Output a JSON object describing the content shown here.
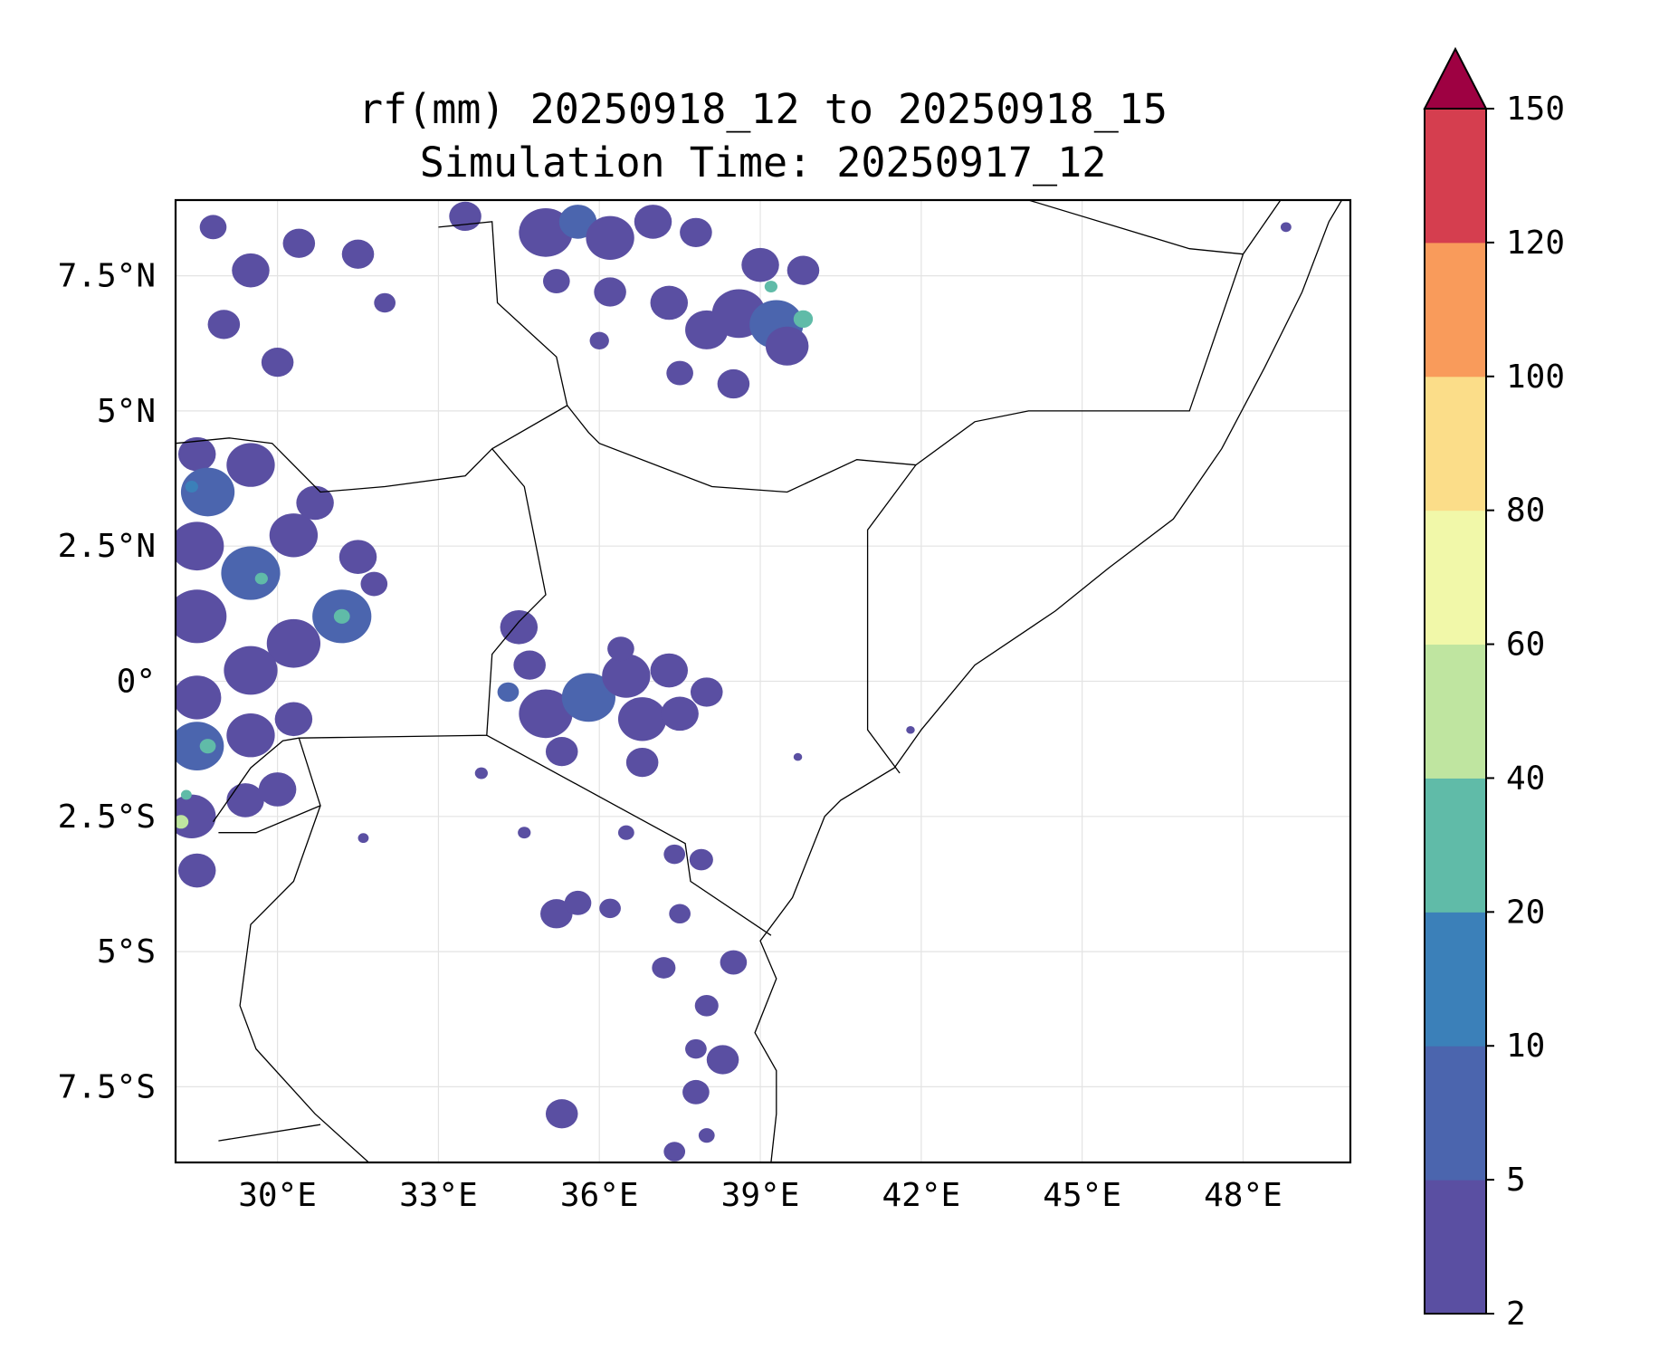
{
  "title": {
    "line1": "rf(mm) 20250918_12 to 20250918_15",
    "line2": "Simulation Time: 20250917_12"
  },
  "map": {
    "lon_range": [
      28.1,
      50.0
    ],
    "lat_range": [
      -8.9,
      8.9
    ],
    "gridlines": true,
    "x_ticks": [
      {
        "value": 30,
        "label": "30°E"
      },
      {
        "value": 33,
        "label": "33°E"
      },
      {
        "value": 36,
        "label": "36°E"
      },
      {
        "value": 39,
        "label": "39°E"
      },
      {
        "value": 42,
        "label": "42°E"
      },
      {
        "value": 45,
        "label": "45°E"
      },
      {
        "value": 48,
        "label": "48°E"
      }
    ],
    "y_ticks": [
      {
        "value": 7.5,
        "label": "7.5°N"
      },
      {
        "value": 5,
        "label": "5°N"
      },
      {
        "value": 2.5,
        "label": "2.5°N"
      },
      {
        "value": 0,
        "label": "0°"
      },
      {
        "value": -2.5,
        "label": "2.5°S"
      },
      {
        "value": -5,
        "label": "5°S"
      },
      {
        "value": -7.5,
        "label": "7.5°S"
      }
    ],
    "coastline_lonlat": [
      [
        39.2,
        -8.9
      ],
      [
        39.3,
        -8.0
      ],
      [
        39.3,
        -7.2
      ],
      [
        38.9,
        -6.5
      ],
      [
        39.3,
        -5.5
      ],
      [
        39.0,
        -4.8
      ],
      [
        39.6,
        -4.0
      ],
      [
        40.2,
        -2.5
      ],
      [
        40.5,
        -2.2
      ],
      [
        41.5,
        -1.6
      ],
      [
        42.0,
        -0.9
      ],
      [
        43.0,
        0.3
      ],
      [
        44.5,
        1.3
      ],
      [
        45.5,
        2.1
      ],
      [
        46.7,
        3.0
      ],
      [
        47.6,
        4.3
      ],
      [
        48.4,
        5.8
      ],
      [
        49.1,
        7.2
      ],
      [
        49.6,
        8.5
      ],
      [
        49.9,
        9.0
      ]
    ],
    "borders_lonlat": [
      [
        [
          28.8,
          -2.6
        ],
        [
          29.5,
          -1.6
        ],
        [
          30.1,
          -1.1
        ],
        [
          30.4,
          -1.05
        ],
        [
          33.9,
          -1.0
        ],
        [
          34.0,
          0.5
        ],
        [
          34.5,
          1.1
        ],
        [
          35.0,
          1.6
        ],
        [
          34.6,
          3.6
        ],
        [
          34.0,
          4.3
        ],
        [
          33.5,
          3.8
        ],
        [
          32.0,
          3.6
        ],
        [
          30.8,
          3.5
        ],
        [
          29.9,
          4.4
        ],
        [
          29.1,
          4.5
        ],
        [
          28.1,
          4.4
        ]
      ],
      [
        [
          30.4,
          -1.05
        ],
        [
          30.8,
          -2.3
        ],
        [
          29.6,
          -2.8
        ],
        [
          28.9,
          -2.8
        ]
      ],
      [
        [
          30.8,
          -2.3
        ],
        [
          30.3,
          -3.7
        ],
        [
          29.5,
          -4.5
        ],
        [
          29.3,
          -6.0
        ],
        [
          29.6,
          -6.8
        ],
        [
          30.7,
          -8.0
        ],
        [
          31.7,
          -8.9
        ]
      ],
      [
        [
          33.9,
          -1.0
        ],
        [
          37.6,
          -3.0
        ],
        [
          37.7,
          -3.7
        ],
        [
          39.2,
          -4.7
        ]
      ],
      [
        [
          34.0,
          4.3
        ],
        [
          35.4,
          5.1
        ],
        [
          35.8,
          4.6
        ],
        [
          36.0,
          4.4
        ],
        [
          38.1,
          3.6
        ],
        [
          39.5,
          3.5
        ],
        [
          40.8,
          4.1
        ],
        [
          41.9,
          4.0
        ],
        [
          41.0,
          2.8
        ],
        [
          41.0,
          -0.9
        ],
        [
          41.6,
          -1.7
        ]
      ],
      [
        [
          41.9,
          4.0
        ],
        [
          43.0,
          4.8
        ],
        [
          44.0,
          5.0
        ],
        [
          47.0,
          5.0
        ],
        [
          48.0,
          7.9
        ],
        [
          48.7,
          8.9
        ]
      ],
      [
        [
          33.0,
          8.4
        ],
        [
          34.0,
          8.5
        ],
        [
          34.1,
          7.0
        ],
        [
          35.2,
          6.0
        ],
        [
          35.4,
          5.1
        ]
      ],
      [
        [
          44.0,
          8.9
        ],
        [
          47.0,
          8.0
        ],
        [
          48.0,
          7.9
        ]
      ],
      [
        [
          28.9,
          -8.5
        ],
        [
          30.8,
          -8.2
        ]
      ]
    ]
  },
  "colorbar": {
    "levels": [
      2,
      5,
      10,
      20,
      40,
      60,
      80,
      100,
      120,
      150
    ],
    "tick_labels": [
      "2",
      "5",
      "10",
      "20",
      "40",
      "60",
      "80",
      "100",
      "120",
      "150"
    ],
    "colors": [
      "#5a4fa2",
      "#4b65ae",
      "#3b80b9",
      "#60bba8",
      "#bfe5a0",
      "#f1f8a9",
      "#fbdd89",
      "#f99b5b",
      "#d53e4f"
    ],
    "extend_color": "#9e0142",
    "extend": "max"
  },
  "rain_cells": [
    {
      "lon": 28.8,
      "lat": 8.4,
      "r": 0.25,
      "level": 0
    },
    {
      "lon": 29.5,
      "lat": 7.6,
      "r": 0.35,
      "level": 0
    },
    {
      "lon": 30.4,
      "lat": 8.1,
      "r": 0.3,
      "level": 0
    },
    {
      "lon": 29.0,
      "lat": 6.6,
      "r": 0.3,
      "level": 0
    },
    {
      "lon": 30.0,
      "lat": 5.9,
      "r": 0.3,
      "level": 0
    },
    {
      "lon": 31.5,
      "lat": 7.9,
      "r": 0.3,
      "level": 0
    },
    {
      "lon": 32.0,
      "lat": 7.0,
      "r": 0.2,
      "level": 0
    },
    {
      "lon": 33.5,
      "lat": 8.6,
      "r": 0.3,
      "level": 0
    },
    {
      "lon": 35.0,
      "lat": 8.3,
      "r": 0.5,
      "level": 0
    },
    {
      "lon": 35.6,
      "lat": 8.5,
      "r": 0.35,
      "level": 1
    },
    {
      "lon": 36.2,
      "lat": 8.2,
      "r": 0.45,
      "level": 0
    },
    {
      "lon": 37.0,
      "lat": 8.5,
      "r": 0.35,
      "level": 0
    },
    {
      "lon": 37.8,
      "lat": 8.3,
      "r": 0.3,
      "level": 0
    },
    {
      "lon": 35.2,
      "lat": 7.4,
      "r": 0.25,
      "level": 0
    },
    {
      "lon": 36.2,
      "lat": 7.2,
      "r": 0.3,
      "level": 0
    },
    {
      "lon": 37.3,
      "lat": 7.0,
      "r": 0.35,
      "level": 0
    },
    {
      "lon": 38.0,
      "lat": 6.5,
      "r": 0.4,
      "level": 0
    },
    {
      "lon": 38.6,
      "lat": 6.8,
      "r": 0.5,
      "level": 0
    },
    {
      "lon": 39.3,
      "lat": 6.6,
      "r": 0.5,
      "level": 1
    },
    {
      "lon": 39.0,
      "lat": 7.7,
      "r": 0.35,
      "level": 0
    },
    {
      "lon": 39.8,
      "lat": 7.6,
      "r": 0.3,
      "level": 0
    },
    {
      "lon": 39.5,
      "lat": 6.2,
      "r": 0.4,
      "level": 0
    },
    {
      "lon": 38.5,
      "lat": 5.5,
      "r": 0.3,
      "level": 0
    },
    {
      "lon": 37.5,
      "lat": 5.7,
      "r": 0.25,
      "level": 0
    },
    {
      "lon": 39.8,
      "lat": 6.7,
      "r": 0.18,
      "level": 3
    },
    {
      "lon": 39.2,
      "lat": 7.3,
      "r": 0.12,
      "level": 3
    },
    {
      "lon": 36.0,
      "lat": 6.3,
      "r": 0.18,
      "level": 0
    },
    {
      "lon": 28.5,
      "lat": 4.2,
      "r": 0.35,
      "level": 0
    },
    {
      "lon": 28.7,
      "lat": 3.5,
      "r": 0.5,
      "level": 1
    },
    {
      "lon": 29.5,
      "lat": 4.0,
      "r": 0.45,
      "level": 0
    },
    {
      "lon": 28.5,
      "lat": 2.5,
      "r": 0.5,
      "level": 0
    },
    {
      "lon": 29.5,
      "lat": 2.0,
      "r": 0.55,
      "level": 1
    },
    {
      "lon": 30.3,
      "lat": 2.7,
      "r": 0.45,
      "level": 0
    },
    {
      "lon": 30.7,
      "lat": 3.3,
      "r": 0.35,
      "level": 0
    },
    {
      "lon": 31.5,
      "lat": 2.3,
      "r": 0.35,
      "level": 0
    },
    {
      "lon": 31.2,
      "lat": 1.2,
      "r": 0.55,
      "level": 1
    },
    {
      "lon": 30.3,
      "lat": 0.7,
      "r": 0.5,
      "level": 0
    },
    {
      "lon": 29.5,
      "lat": 0.2,
      "r": 0.5,
      "level": 0
    },
    {
      "lon": 28.5,
      "lat": 1.2,
      "r": 0.55,
      "level": 0
    },
    {
      "lon": 28.5,
      "lat": -0.3,
      "r": 0.45,
      "level": 0
    },
    {
      "lon": 28.5,
      "lat": -1.2,
      "r": 0.5,
      "level": 1
    },
    {
      "lon": 29.5,
      "lat": -1.0,
      "r": 0.45,
      "level": 0
    },
    {
      "lon": 30.3,
      "lat": -0.7,
      "r": 0.35,
      "level": 0
    },
    {
      "lon": 28.4,
      "lat": -2.5,
      "r": 0.45,
      "level": 0
    },
    {
      "lon": 29.4,
      "lat": -2.2,
      "r": 0.35,
      "level": 0
    },
    {
      "lon": 30.0,
      "lat": -2.0,
      "r": 0.35,
      "level": 0
    },
    {
      "lon": 28.5,
      "lat": -3.5,
      "r": 0.35,
      "level": 0
    },
    {
      "lon": 31.8,
      "lat": 1.8,
      "r": 0.25,
      "level": 0
    },
    {
      "lon": 31.2,
      "lat": 1.2,
      "r": 0.15,
      "level": 3
    },
    {
      "lon": 29.7,
      "lat": 1.9,
      "r": 0.12,
      "level": 3
    },
    {
      "lon": 28.7,
      "lat": -1.2,
      "r": 0.15,
      "level": 3
    },
    {
      "lon": 28.2,
      "lat": -2.6,
      "r": 0.14,
      "level": 4
    },
    {
      "lon": 28.3,
      "lat": -2.1,
      "r": 0.1,
      "level": 3
    },
    {
      "lon": 28.4,
      "lat": 3.6,
      "r": 0.12,
      "level": 2
    },
    {
      "lon": 34.5,
      "lat": 1.0,
      "r": 0.35,
      "level": 0
    },
    {
      "lon": 34.7,
      "lat": 0.3,
      "r": 0.3,
      "level": 0
    },
    {
      "lon": 34.3,
      "lat": -0.2,
      "r": 0.2,
      "level": 1
    },
    {
      "lon": 35.0,
      "lat": -0.6,
      "r": 0.5,
      "level": 0
    },
    {
      "lon": 35.8,
      "lat": -0.3,
      "r": 0.5,
      "level": 1
    },
    {
      "lon": 36.5,
      "lat": 0.1,
      "r": 0.45,
      "level": 0
    },
    {
      "lon": 36.8,
      "lat": -0.7,
      "r": 0.45,
      "level": 0
    },
    {
      "lon": 37.3,
      "lat": 0.2,
      "r": 0.35,
      "level": 0
    },
    {
      "lon": 37.5,
      "lat": -0.6,
      "r": 0.35,
      "level": 0
    },
    {
      "lon": 38.0,
      "lat": -0.2,
      "r": 0.3,
      "level": 0
    },
    {
      "lon": 35.3,
      "lat": -1.3,
      "r": 0.3,
      "level": 0
    },
    {
      "lon": 36.8,
      "lat": -1.5,
      "r": 0.3,
      "level": 0
    },
    {
      "lon": 36.4,
      "lat": 0.6,
      "r": 0.25,
      "level": 0
    },
    {
      "lon": 37.4,
      "lat": -3.2,
      "r": 0.2,
      "level": 0
    },
    {
      "lon": 37.9,
      "lat": -3.3,
      "r": 0.22,
      "level": 0
    },
    {
      "lon": 35.2,
      "lat": -4.3,
      "r": 0.3,
      "level": 0
    },
    {
      "lon": 35.6,
      "lat": -4.1,
      "r": 0.25,
      "level": 0
    },
    {
      "lon": 36.2,
      "lat": -4.2,
      "r": 0.2,
      "level": 0
    },
    {
      "lon": 37.5,
      "lat": -4.3,
      "r": 0.2,
      "level": 0
    },
    {
      "lon": 38.5,
      "lat": -5.2,
      "r": 0.25,
      "level": 0
    },
    {
      "lon": 37.2,
      "lat": -5.3,
      "r": 0.22,
      "level": 0
    },
    {
      "lon": 38.0,
      "lat": -6.0,
      "r": 0.22,
      "level": 0
    },
    {
      "lon": 37.8,
      "lat": -6.8,
      "r": 0.2,
      "level": 0
    },
    {
      "lon": 38.3,
      "lat": -7.0,
      "r": 0.3,
      "level": 0
    },
    {
      "lon": 37.8,
      "lat": -7.6,
      "r": 0.25,
      "level": 0
    },
    {
      "lon": 35.3,
      "lat": -8.0,
      "r": 0.3,
      "level": 0
    },
    {
      "lon": 37.4,
      "lat": -8.7,
      "r": 0.2,
      "level": 0
    },
    {
      "lon": 38.0,
      "lat": -8.4,
      "r": 0.15,
      "level": 0
    },
    {
      "lon": 34.6,
      "lat": -2.8,
      "r": 0.12,
      "level": 0
    },
    {
      "lon": 36.5,
      "lat": -2.8,
      "r": 0.15,
      "level": 0
    },
    {
      "lon": 33.8,
      "lat": -1.7,
      "r": 0.12,
      "level": 0
    },
    {
      "lon": 39.7,
      "lat": -1.4,
      "r": 0.08,
      "level": 0
    },
    {
      "lon": 48.8,
      "lat": 8.4,
      "r": 0.1,
      "level": 0
    },
    {
      "lon": 41.8,
      "lat": -0.9,
      "r": 0.08,
      "level": 0
    },
    {
      "lon": 31.6,
      "lat": -2.9,
      "r": 0.1,
      "level": 0
    }
  ]
}
